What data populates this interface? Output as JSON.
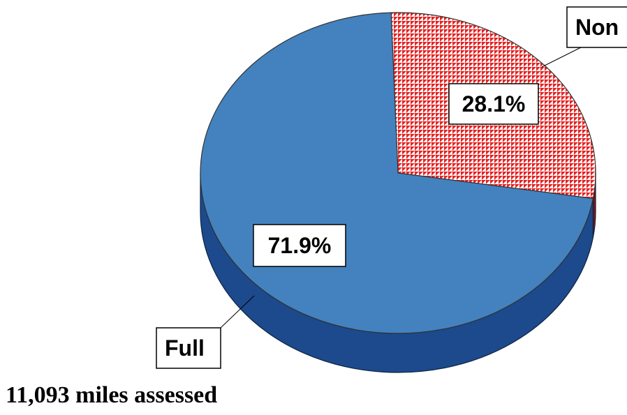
{
  "chart_data": {
    "type": "pie",
    "title": "",
    "categories": [
      "Non",
      "Full"
    ],
    "values": [
      28.1,
      71.9
    ],
    "value_labels": [
      "28.1%",
      "71.9%"
    ],
    "style": "3d",
    "legend": "none",
    "colors": {
      "Non": "#ff0000",
      "Full": "#4382bf",
      "Full_side": "#1c4a8c"
    },
    "pattern": {
      "Non": "red-white-checker"
    }
  },
  "footer": {
    "note": "11,093 miles assessed"
  }
}
